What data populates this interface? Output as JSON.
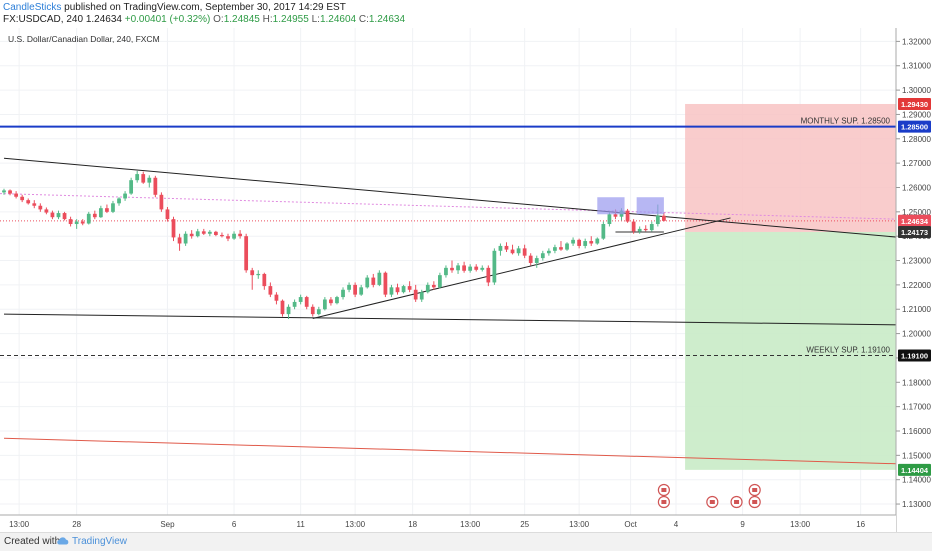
{
  "header": {
    "author": "CandleSticks",
    "published": "published on TradingView.com, September 30, 2017 14:29 EST",
    "symbol": "FX:USDCAD, 240",
    "last": "1.24634",
    "change": "+0.00401 (+0.32%)",
    "o_label": "O:",
    "o_value": "1.24845",
    "h_label": "H:",
    "h_value": "1.24955",
    "l_label": "L:",
    "l_value": "1.24604",
    "c_label": "C:",
    "c_value": "1.24634"
  },
  "chart_title": "U.S. Dollar/Canadian Dollar, 240, FXCM",
  "footer": {
    "created_with": "Created with",
    "brand": "TradingView"
  },
  "colors": {
    "up": "#53b987",
    "down": "#eb4d5c",
    "axis_text": "#444444",
    "monthly_line": "#1a3cc8",
    "red_zone": "#f8c3c3",
    "green_zone": "#c9ebc6",
    "highlight": "#9999ee"
  },
  "icons": [
    "calendar-event-icon",
    "tradingview-cloud-logo-icon"
  ],
  "chart_data": {
    "type": "candlestick",
    "title": "U.S. Dollar/Canadian Dollar, 240, FXCM",
    "y_range": [
      1.1255,
      1.3255
    ],
    "y_ticks": [
      1.13,
      1.14,
      1.15,
      1.16,
      1.17,
      1.18,
      1.19,
      1.2,
      1.21,
      1.22,
      1.23,
      1.24,
      1.25,
      1.26,
      1.27,
      1.28,
      1.29,
      1.3,
      1.31,
      1.32
    ],
    "y_tick_labels": [
      "1.13000",
      "1.14000",
      "1.15000",
      "1.16000",
      "1.17000",
      "1.18000",
      "1.19000",
      "1.20000",
      "1.21000",
      "1.22000",
      "1.23000",
      "1.24000",
      "1.25000",
      "1.26000",
      "1.27000",
      "1.28000",
      "1.29000",
      "1.30000",
      "1.31000",
      "1.32000"
    ],
    "x_range": [
      0,
      148
    ],
    "x_ticks": [
      {
        "pos": 2.5,
        "label": "13:00"
      },
      {
        "pos": 12,
        "label": "28"
      },
      {
        "pos": 27,
        "label": "Sep"
      },
      {
        "pos": 38,
        "label": "6"
      },
      {
        "pos": 49,
        "label": "11"
      },
      {
        "pos": 58,
        "label": "13:00"
      },
      {
        "pos": 67.5,
        "label": "18"
      },
      {
        "pos": 77,
        "label": "13:00"
      },
      {
        "pos": 86,
        "label": "25"
      },
      {
        "pos": 95,
        "label": "13:00"
      },
      {
        "pos": 103.5,
        "label": "Oct"
      },
      {
        "pos": 111,
        "label": "4"
      },
      {
        "pos": 122,
        "label": "9"
      },
      {
        "pos": 131.5,
        "label": "13:00"
      },
      {
        "pos": 141.5,
        "label": "16"
      }
    ],
    "candles": [
      [
        1.258,
        1.2595,
        1.257,
        1.2588
      ],
      [
        1.2588,
        1.2592,
        1.2568,
        1.2575
      ],
      [
        1.2575,
        1.2585,
        1.2555,
        1.2562
      ],
      [
        1.2562,
        1.257,
        1.254,
        1.2548
      ],
      [
        1.2548,
        1.2555,
        1.253,
        1.2535
      ],
      [
        1.2535,
        1.2548,
        1.2515,
        1.2525
      ],
      [
        1.2525,
        1.2535,
        1.25,
        1.251
      ],
      [
        1.251,
        1.2518,
        1.249,
        1.2497
      ],
      [
        1.2497,
        1.2505,
        1.247,
        1.2478
      ],
      [
        1.2478,
        1.2505,
        1.247,
        1.2495
      ],
      [
        1.2495,
        1.25,
        1.2465,
        1.247
      ],
      [
        1.247,
        1.248,
        1.244,
        1.245
      ],
      [
        1.245,
        1.247,
        1.243,
        1.246
      ],
      [
        1.246,
        1.247,
        1.2445,
        1.2452
      ],
      [
        1.2452,
        1.25,
        1.2448,
        1.2492
      ],
      [
        1.2492,
        1.2505,
        1.247,
        1.2478
      ],
      [
        1.2478,
        1.2525,
        1.2475,
        1.2515
      ],
      [
        1.2515,
        1.253,
        1.2495,
        1.25
      ],
      [
        1.25,
        1.2545,
        1.2495,
        1.2535
      ],
      [
        1.2535,
        1.256,
        1.2525,
        1.2555
      ],
      [
        1.2555,
        1.2585,
        1.2545,
        1.2575
      ],
      [
        1.2575,
        1.264,
        1.257,
        1.263
      ],
      [
        1.263,
        1.2668,
        1.262,
        1.2655
      ],
      [
        1.2655,
        1.2665,
        1.2615,
        1.262
      ],
      [
        1.262,
        1.265,
        1.26,
        1.264
      ],
      [
        1.264,
        1.2648,
        1.256,
        1.257
      ],
      [
        1.257,
        1.258,
        1.25,
        1.251
      ],
      [
        1.251,
        1.252,
        1.246,
        1.247
      ],
      [
        1.247,
        1.248,
        1.238,
        1.2395
      ],
      [
        1.2395,
        1.241,
        1.234,
        1.237
      ],
      [
        1.237,
        1.242,
        1.236,
        1.241
      ],
      [
        1.241,
        1.2425,
        1.239,
        1.24
      ],
      [
        1.24,
        1.243,
        1.2395,
        1.242
      ],
      [
        1.242,
        1.243,
        1.2405,
        1.241
      ],
      [
        1.241,
        1.2425,
        1.24,
        1.2418
      ],
      [
        1.2418,
        1.2422,
        1.24,
        1.2405
      ],
      [
        1.2405,
        1.2415,
        1.2395,
        1.24
      ],
      [
        1.24,
        1.241,
        1.238,
        1.239
      ],
      [
        1.239,
        1.242,
        1.2385,
        1.241
      ],
      [
        1.241,
        1.2425,
        1.239,
        1.24
      ],
      [
        1.24,
        1.241,
        1.225,
        1.226
      ],
      [
        1.226,
        1.227,
        1.218,
        1.224
      ],
      [
        1.224,
        1.226,
        1.2225,
        1.2245
      ],
      [
        1.2245,
        1.225,
        1.218,
        1.2195
      ],
      [
        1.2195,
        1.221,
        1.215,
        1.216
      ],
      [
        1.216,
        1.217,
        1.212,
        1.2135
      ],
      [
        1.2135,
        1.214,
        1.207,
        1.208
      ],
      [
        1.208,
        1.212,
        1.206,
        1.211
      ],
      [
        1.211,
        1.214,
        1.21,
        1.213
      ],
      [
        1.213,
        1.216,
        1.212,
        1.215
      ],
      [
        1.215,
        1.2155,
        1.21,
        1.211
      ],
      [
        1.211,
        1.212,
        1.207,
        1.208
      ],
      [
        1.208,
        1.211,
        1.2075,
        1.21
      ],
      [
        1.21,
        1.215,
        1.2095,
        1.214
      ],
      [
        1.214,
        1.215,
        1.2115,
        1.2125
      ],
      [
        1.2125,
        1.2155,
        1.212,
        1.215
      ],
      [
        1.215,
        1.219,
        1.214,
        1.218
      ],
      [
        1.218,
        1.221,
        1.217,
        1.22
      ],
      [
        1.22,
        1.221,
        1.215,
        1.216
      ],
      [
        1.216,
        1.22,
        1.2155,
        1.219
      ],
      [
        1.219,
        1.224,
        1.2185,
        1.223
      ],
      [
        1.223,
        1.2245,
        1.219,
        1.22
      ],
      [
        1.22,
        1.226,
        1.2195,
        1.225
      ],
      [
        1.225,
        1.2255,
        1.215,
        1.216
      ],
      [
        1.216,
        1.22,
        1.215,
        1.219
      ],
      [
        1.219,
        1.2205,
        1.216,
        1.217
      ],
      [
        1.217,
        1.22,
        1.2165,
        1.2195
      ],
      [
        1.2195,
        1.2215,
        1.217,
        1.218
      ],
      [
        1.218,
        1.22,
        1.213,
        1.214
      ],
      [
        1.214,
        1.218,
        1.213,
        1.217
      ],
      [
        1.217,
        1.221,
        1.2165,
        1.22
      ],
      [
        1.22,
        1.2215,
        1.218,
        1.219
      ],
      [
        1.219,
        1.225,
        1.2185,
        1.224
      ],
      [
        1.224,
        1.228,
        1.223,
        1.227
      ],
      [
        1.227,
        1.23,
        1.225,
        1.226
      ],
      [
        1.226,
        1.229,
        1.2245,
        1.228
      ],
      [
        1.228,
        1.2295,
        1.225,
        1.2258
      ],
      [
        1.2258,
        1.2285,
        1.225,
        1.2275
      ],
      [
        1.2275,
        1.2285,
        1.2255,
        1.2262
      ],
      [
        1.2262,
        1.228,
        1.2255,
        1.227
      ],
      [
        1.227,
        1.228,
        1.2195,
        1.221
      ],
      [
        1.221,
        1.235,
        1.22,
        1.234
      ],
      [
        1.234,
        1.237,
        1.232,
        1.236
      ],
      [
        1.236,
        1.2375,
        1.2335,
        1.2345
      ],
      [
        1.2345,
        1.2365,
        1.2325,
        1.233
      ],
      [
        1.233,
        1.236,
        1.232,
        1.235
      ],
      [
        1.235,
        1.2365,
        1.231,
        1.232
      ],
      [
        1.232,
        1.233,
        1.228,
        1.229
      ],
      [
        1.229,
        1.232,
        1.227,
        1.231
      ],
      [
        1.231,
        1.234,
        1.23,
        1.233
      ],
      [
        1.233,
        1.235,
        1.232,
        1.234
      ],
      [
        1.234,
        1.2365,
        1.233,
        1.2355
      ],
      [
        1.2355,
        1.238,
        1.234,
        1.2345
      ],
      [
        1.2345,
        1.2375,
        1.234,
        1.237
      ],
      [
        1.237,
        1.2395,
        1.236,
        1.2385
      ],
      [
        1.2385,
        1.239,
        1.235,
        1.236
      ],
      [
        1.236,
        1.239,
        1.235,
        1.238
      ],
      [
        1.238,
        1.24,
        1.236,
        1.237
      ],
      [
        1.237,
        1.2395,
        1.2365,
        1.239
      ],
      [
        1.239,
        1.246,
        1.2385,
        1.245
      ],
      [
        1.245,
        1.25,
        1.244,
        1.249
      ],
      [
        1.249,
        1.251,
        1.247,
        1.248
      ],
      [
        1.248,
        1.2515,
        1.2465,
        1.2505
      ],
      [
        1.2505,
        1.2512,
        1.2455,
        1.246
      ],
      [
        1.246,
        1.247,
        1.241,
        1.242
      ],
      [
        1.242,
        1.244,
        1.241,
        1.243
      ],
      [
        1.243,
        1.2445,
        1.242,
        1.2425
      ],
      [
        1.2425,
        1.246,
        1.242,
        1.245
      ],
      [
        1.245,
        1.253,
        1.244,
        1.2484
      ],
      [
        1.2484,
        1.2496,
        1.246,
        1.2463
      ]
    ],
    "lines": [
      {
        "name": "descending-trendline",
        "x1": 0,
        "y1": 1.272,
        "x2": 148,
        "y2": 1.2395,
        "color": "#222222"
      },
      {
        "name": "lower-trendline",
        "x1": 0,
        "y1": 1.208,
        "x2": 148,
        "y2": 1.2036,
        "color": "#222222"
      },
      {
        "name": "ascending-trendline",
        "x1": 51,
        "y1": 1.2062,
        "x2": 120,
        "y2": 1.2475,
        "color": "#222222"
      },
      {
        "name": "red-trendline",
        "x1": 0,
        "y1": 1.157,
        "x2": 148,
        "y2": 1.1465,
        "color": "#e05a4a"
      }
    ],
    "monthly_support": {
      "label": "MONTHLY SUP. 1.28500",
      "value": 1.285
    },
    "weekly_support": {
      "label": "WEEKLY SUP. 1.19100",
      "value": 1.191
    },
    "position": {
      "x_start": 112.5,
      "x_end": 148,
      "entry": 1.24173,
      "stop": 1.2943,
      "target": 1.14404
    },
    "price_labels": [
      {
        "value": 1.2943,
        "text": "1.29430",
        "bg": "#e23838",
        "fg": "#ffffff"
      },
      {
        "value": 1.285,
        "text": "1.28500",
        "bg": "#1a3cc8",
        "fg": "#ffffff"
      },
      {
        "value": 1.24634,
        "text": "1.24634",
        "bg": "#eb4d5c",
        "fg": "#ffffff"
      },
      {
        "value": 1.24173,
        "text": "1.24173",
        "bg": "#333333",
        "fg": "#ffffff"
      },
      {
        "value": 1.191,
        "text": "1.19100",
        "bg": "#111111",
        "fg": "#ffffff"
      },
      {
        "value": 1.14404,
        "text": "1.14404",
        "bg": "#2e9b45",
        "fg": "#ffffff"
      }
    ],
    "highlight_boxes": [
      {
        "x1": 98,
        "x2": 102.5,
        "y1": 1.249,
        "y2": 1.256
      },
      {
        "x1": 104.5,
        "x2": 109,
        "y1": 1.249,
        "y2": 1.256
      }
    ],
    "event_badges": [
      {
        "pos": 109,
        "row": 0
      },
      {
        "pos": 109,
        "row": 1
      },
      {
        "pos": 117,
        "row": 1
      },
      {
        "pos": 121,
        "row": 1
      },
      {
        "pos": 124,
        "row": 0
      },
      {
        "pos": 124,
        "row": 1
      }
    ]
  }
}
